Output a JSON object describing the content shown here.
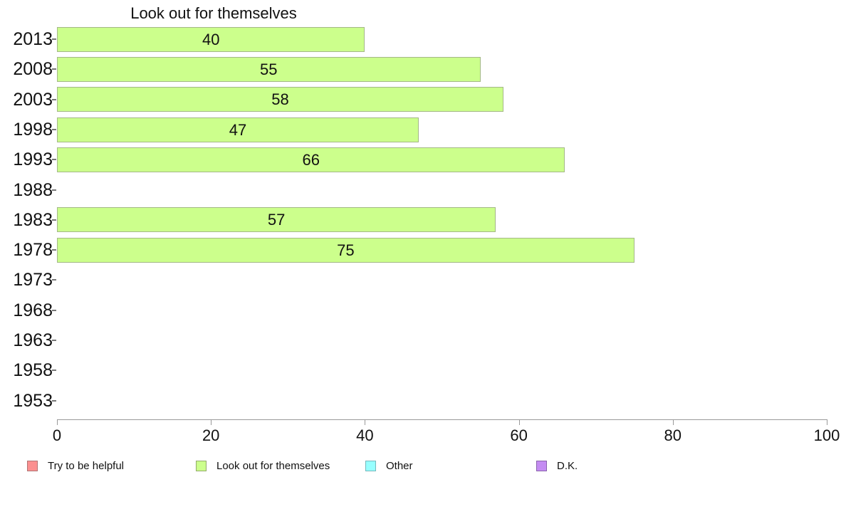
{
  "chart_data": {
    "type": "bar",
    "orientation": "horizontal",
    "title": "Look out for themselves",
    "series_name": "Look out for themselves",
    "categories": [
      "2013",
      "2008",
      "2003",
      "1998",
      "1993",
      "1988",
      "1983",
      "1978",
      "1973",
      "1968",
      "1963",
      "1958",
      "1953"
    ],
    "values": [
      40,
      55,
      58,
      47,
      66,
      null,
      57,
      75,
      null,
      null,
      null,
      null,
      null
    ],
    "xlim": [
      0,
      100
    ],
    "x_ticks": [
      0,
      20,
      40,
      60,
      80,
      100
    ],
    "grid": false,
    "bar_fill_color": "#ccff8c",
    "bar_border_color": "#a4b887",
    "legend_position": "bottom"
  },
  "legend": {
    "items": [
      {
        "label": "Try to be helpful",
        "color": "#fb9090",
        "border": "#b17474"
      },
      {
        "label": "Look out for themselves",
        "color": "#ccff8c",
        "border": "#93ab6b"
      },
      {
        "label": "Other",
        "color": "#97ffff",
        "border": "#76b8bc"
      },
      {
        "label": "D.K.",
        "color": "#c48cf2",
        "border": "#8a63ad"
      }
    ]
  }
}
